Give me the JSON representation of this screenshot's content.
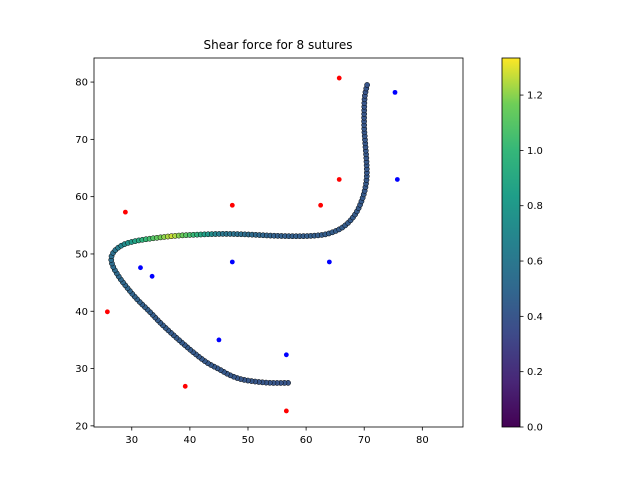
{
  "chart_data": {
    "type": "scatter",
    "title": "Shear force for 8 sutures",
    "xlabel": "",
    "ylabel": "",
    "xlim": [
      23.5,
      87.0
    ],
    "ylim": [
      19.8,
      84.2
    ],
    "xticks": [
      30,
      40,
      50,
      60,
      70,
      80
    ],
    "yticks": [
      20,
      30,
      40,
      50,
      60,
      70,
      80
    ],
    "grid": false,
    "colormap": "viridis",
    "colorbar": {
      "range": [
        0.0,
        1.334
      ],
      "ticks": [
        0.0,
        0.2,
        0.4,
        0.6,
        0.8,
        1.0,
        1.2
      ],
      "tick_labels": [
        "0.0",
        "0.2",
        "0.4",
        "0.6",
        "0.8",
        "1.0",
        "1.2"
      ]
    },
    "wound_curve": {
      "description_points": [
        [
          56.9,
          27.5
        ],
        [
          54.0,
          27.5
        ],
        [
          51.5,
          27.7
        ],
        [
          49.0,
          28.1
        ],
        [
          47.0,
          28.8
        ],
        [
          45.0,
          29.9
        ],
        [
          43.0,
          31.0
        ],
        [
          41.0,
          32.5
        ],
        [
          39.0,
          34.2
        ],
        [
          37.0,
          36.0
        ],
        [
          35.0,
          37.9
        ],
        [
          33.0,
          40.0
        ],
        [
          31.0,
          42.0
        ],
        [
          29.3,
          44.0
        ],
        [
          27.8,
          46.0
        ],
        [
          26.7,
          48.0
        ],
        [
          26.5,
          49.5
        ],
        [
          27.2,
          50.7
        ],
        [
          28.5,
          51.6
        ],
        [
          30.0,
          52.1
        ],
        [
          32.0,
          52.5
        ],
        [
          35.0,
          52.9
        ],
        [
          38.0,
          53.2
        ],
        [
          42.0,
          53.4
        ],
        [
          46.0,
          53.5
        ],
        [
          50.0,
          53.4
        ],
        [
          54.0,
          53.2
        ],
        [
          58.0,
          53.1
        ],
        [
          61.5,
          53.2
        ],
        [
          64.0,
          53.6
        ],
        [
          66.5,
          54.8
        ],
        [
          68.5,
          57.0
        ],
        [
          69.8,
          60.0
        ],
        [
          70.4,
          63.0
        ],
        [
          70.4,
          66.0
        ],
        [
          70.2,
          69.0
        ],
        [
          70.0,
          72.0
        ],
        [
          70.0,
          75.0
        ],
        [
          70.1,
          77.5
        ],
        [
          70.5,
          79.5
        ]
      ],
      "force_profile": [
        [
          0.0,
          0.4
        ],
        [
          0.25,
          0.44
        ],
        [
          0.38,
          0.55
        ],
        [
          0.45,
          1.1
        ],
        [
          0.48,
          1.28
        ],
        [
          0.51,
          1.05
        ],
        [
          0.56,
          0.6
        ],
        [
          0.65,
          0.46
        ],
        [
          0.85,
          0.42
        ],
        [
          1.0,
          0.4
        ]
      ]
    },
    "insertion_points": {
      "color": "#ff0000",
      "points": [
        [
          65.7,
          80.7
        ],
        [
          65.7,
          63.0
        ],
        [
          62.5,
          58.5
        ],
        [
          47.3,
          58.5
        ],
        [
          28.9,
          57.3
        ],
        [
          25.8,
          39.9
        ],
        [
          39.2,
          26.9
        ],
        [
          56.6,
          22.6
        ]
      ]
    },
    "extraction_points": {
      "color": "#0000ff",
      "points": [
        [
          75.3,
          78.2
        ],
        [
          75.7,
          63.0
        ],
        [
          64.0,
          48.6
        ],
        [
          47.3,
          48.6
        ],
        [
          31.5,
          47.6
        ],
        [
          33.5,
          46.1
        ],
        [
          45.0,
          35.0
        ],
        [
          56.6,
          32.4
        ]
      ]
    }
  },
  "colors": {
    "curve_edge": "#000000",
    "axes": "#000000",
    "background": "#ffffff"
  }
}
